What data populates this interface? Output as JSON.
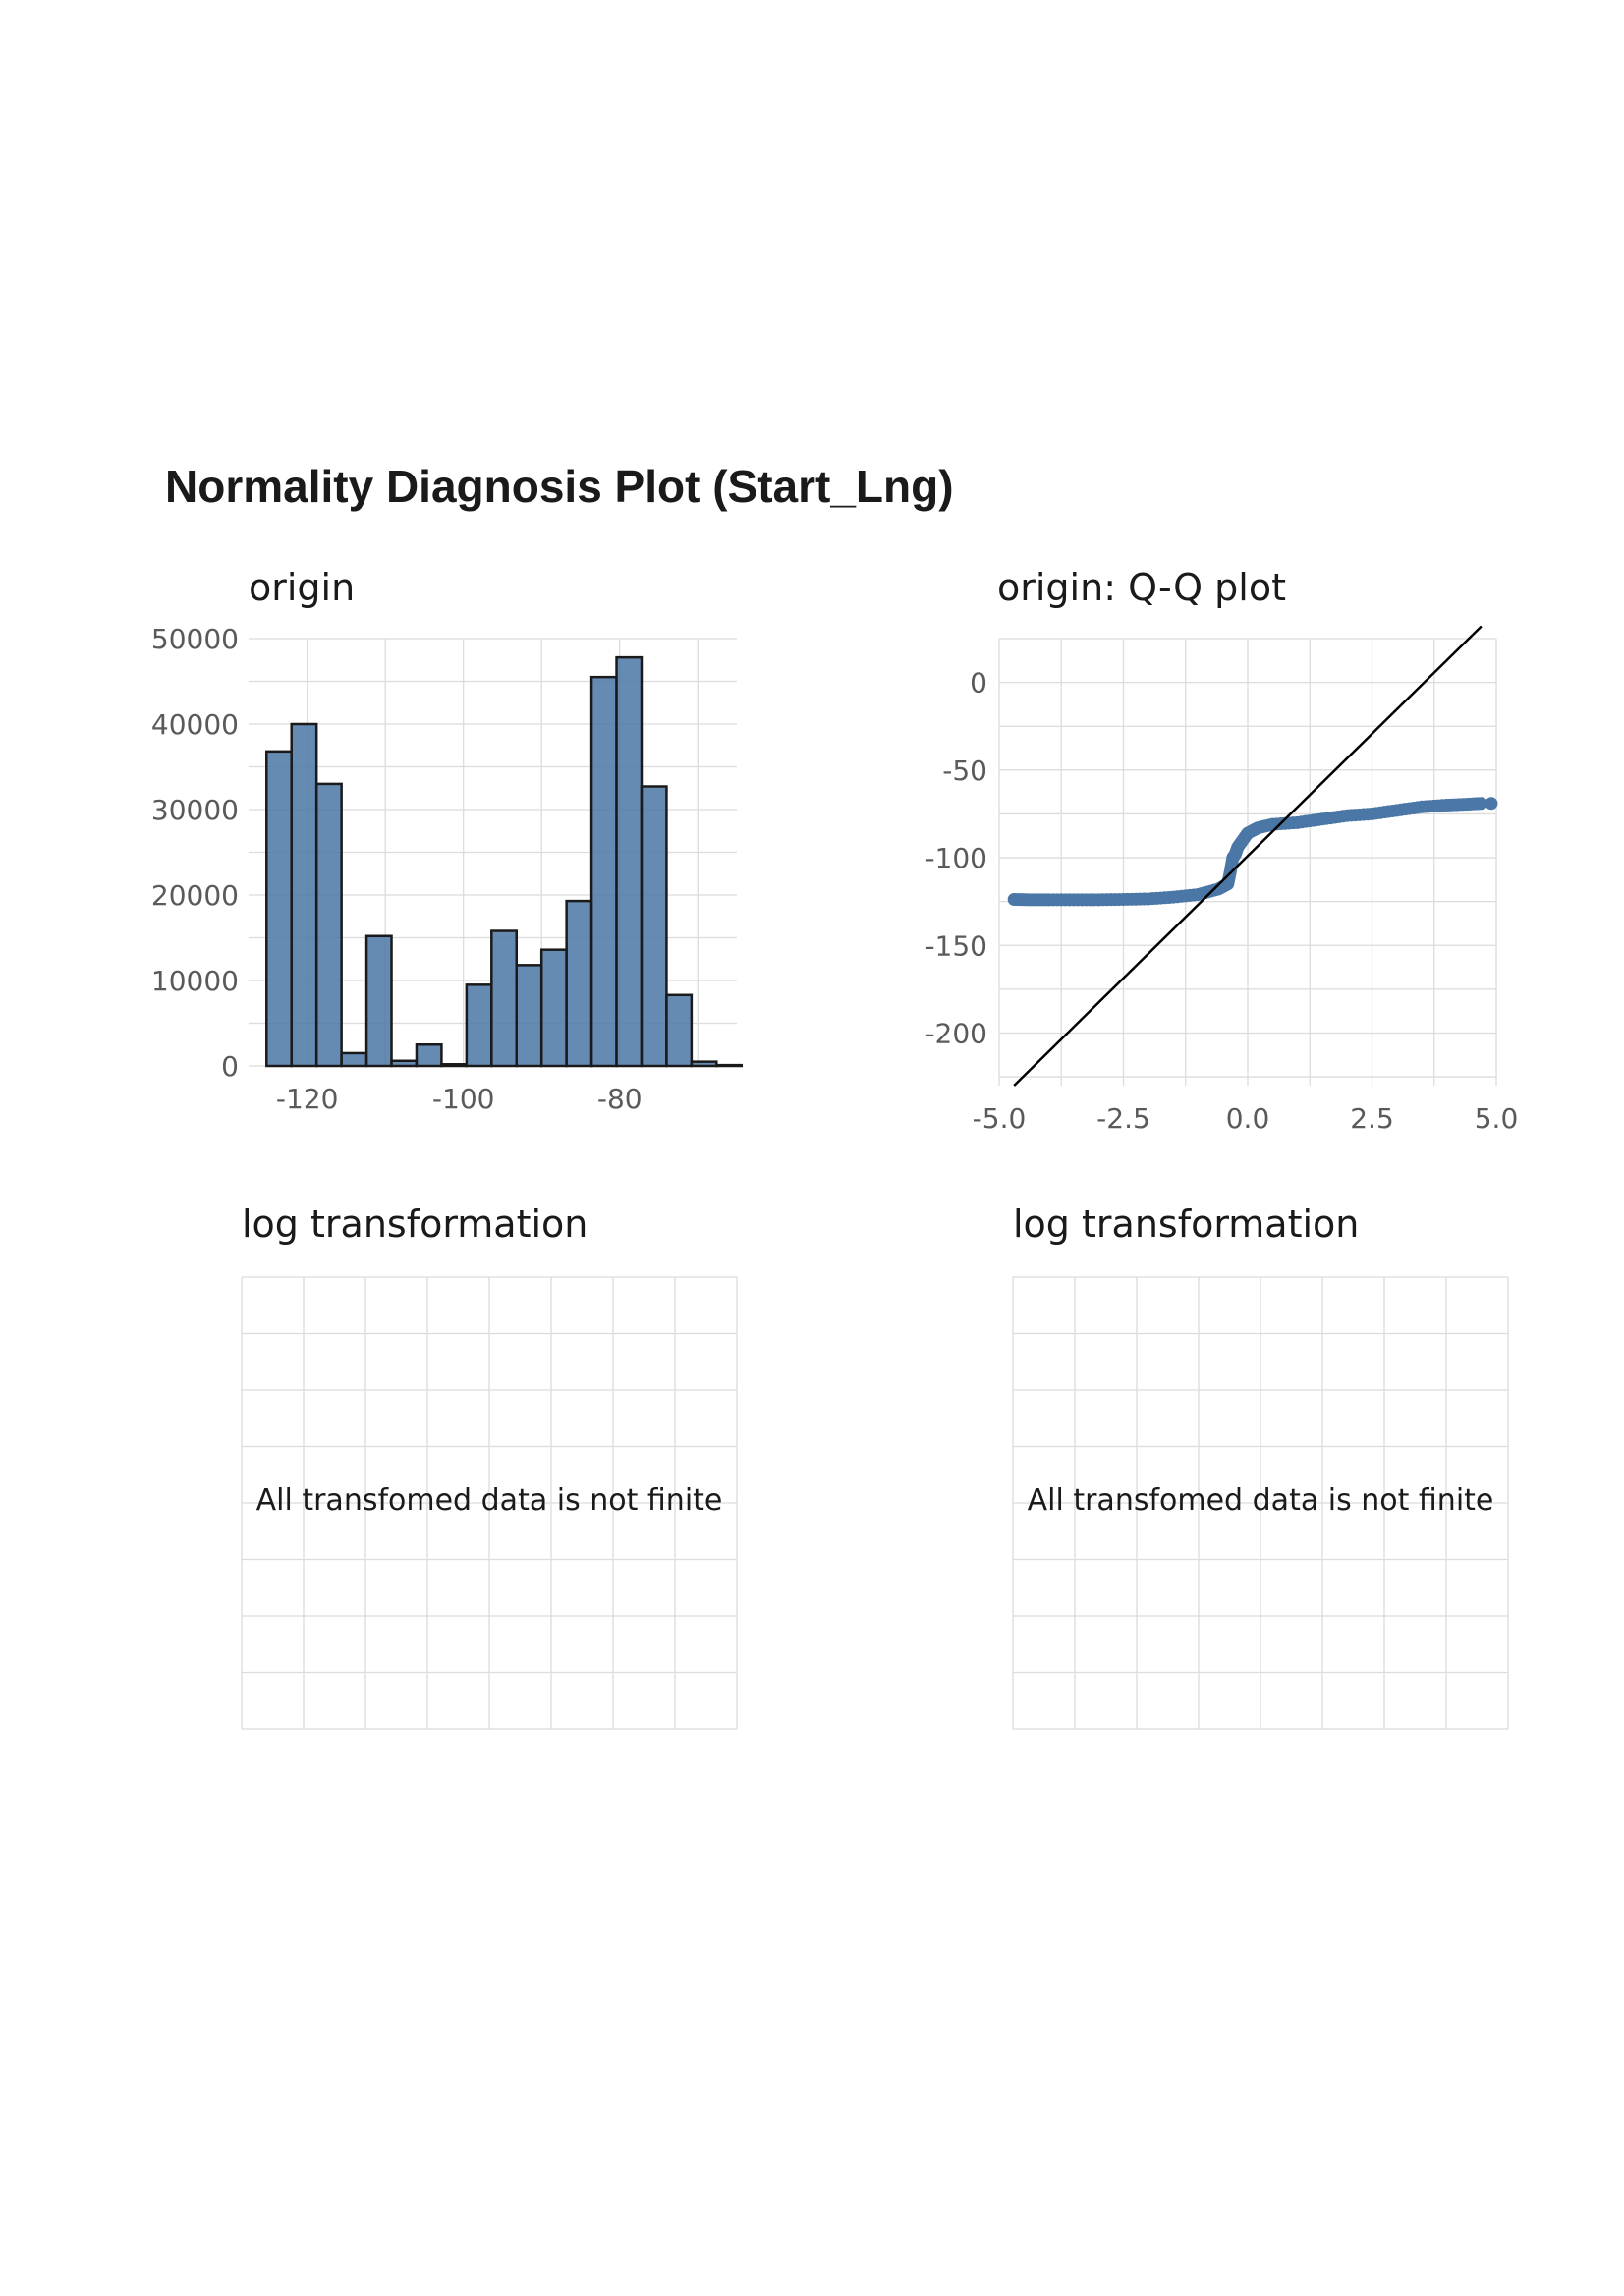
{
  "page_title": "Normality Diagnosis Plot (Start_Lng)",
  "colors": {
    "fill": "#4b77a6",
    "grid": "#dcdcdc",
    "text": "#1a1a1a",
    "tick": "#5a5a5a"
  },
  "chart_data": [
    {
      "type": "bar",
      "subtitle": "origin",
      "xlabel": "",
      "ylabel": "",
      "x_ticks": [
        -120,
        -100,
        -80
      ],
      "y_ticks": [
        0,
        10000,
        20000,
        30000,
        40000,
        50000
      ],
      "x_tick_labels": [
        "-120",
        "-100",
        "-80"
      ],
      "y_tick_labels": [
        "0",
        "10000",
        "20000",
        "30000",
        "40000",
        "50000"
      ],
      "xlim": [
        -127.5,
        -65
      ],
      "ylim": [
        0,
        50000
      ],
      "bin_width": 3.2,
      "bin_starts": [
        -125.2,
        -122.0,
        -118.8,
        -115.6,
        -112.4,
        -109.2,
        -106.0,
        -102.8,
        -99.6,
        -96.4,
        -93.2,
        -90.0,
        -86.8,
        -83.6,
        -80.4,
        -77.2,
        -74.0,
        -70.8,
        -67.6
      ],
      "values": [
        36800,
        40000,
        33000,
        1500,
        15200,
        600,
        2500,
        200,
        9500,
        15800,
        11800,
        13600,
        19300,
        45500,
        47800,
        32700,
        8300,
        500,
        100
      ],
      "grid": true
    },
    {
      "type": "scatter",
      "subtitle": "origin: Q-Q plot",
      "xlabel": "",
      "ylabel": "",
      "x_ticks": [
        -5,
        -2.5,
        0,
        2.5,
        5
      ],
      "y_ticks": [
        0,
        -50,
        -100,
        -150,
        -200
      ],
      "x_tick_labels": [
        "-5.0",
        "-2.5",
        "0.0",
        "2.5",
        "5.0"
      ],
      "y_tick_labels": [
        "0",
        "-50",
        "-100",
        "-150",
        "-200"
      ],
      "xlim": [
        -5,
        5
      ],
      "ylim": [
        -230,
        25
      ],
      "points": [
        [
          -4.7,
          -123.8
        ],
        [
          -4.4,
          -124
        ],
        [
          -4,
          -124
        ],
        [
          -3.5,
          -124
        ],
        [
          -3,
          -124
        ],
        [
          -2.5,
          -123.8
        ],
        [
          -2,
          -123.5
        ],
        [
          -1.5,
          -122.5
        ],
        [
          -1,
          -121
        ],
        [
          -0.6,
          -118
        ],
        [
          -0.4,
          -115
        ],
        [
          -0.35,
          -108
        ],
        [
          -0.3,
          -100
        ],
        [
          -0.25,
          -98
        ],
        [
          -0.2,
          -94
        ],
        [
          -0.1,
          -90
        ],
        [
          0,
          -86
        ],
        [
          0.2,
          -83
        ],
        [
          0.5,
          -81
        ],
        [
          1,
          -80
        ],
        [
          1.5,
          -78
        ],
        [
          2,
          -76
        ],
        [
          2.5,
          -75
        ],
        [
          3,
          -73
        ],
        [
          3.5,
          -71
        ],
        [
          4,
          -70
        ],
        [
          4.4,
          -69.5
        ],
        [
          4.7,
          -69
        ]
      ],
      "reference_line": [
        [
          -4.7,
          -230
        ],
        [
          4.7,
          32
        ]
      ],
      "grid": true
    }
  ],
  "empty_panels": [
    {
      "subtitle": "log transformation",
      "message": "All transfomed data is not finite"
    },
    {
      "subtitle": "log transformation",
      "message": "All transfomed data is not finite"
    }
  ]
}
